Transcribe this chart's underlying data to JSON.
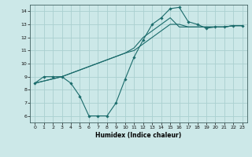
{
  "xlabel": "Humidex (Indice chaleur)",
  "background_color": "#cce8e8",
  "grid_color": "#aad0d0",
  "line_color": "#1a6b6b",
  "xlim": [
    -0.5,
    23.5
  ],
  "ylim": [
    5.5,
    14.5
  ],
  "xticks": [
    0,
    1,
    2,
    3,
    4,
    5,
    6,
    7,
    8,
    9,
    10,
    11,
    12,
    13,
    14,
    15,
    16,
    17,
    18,
    19,
    20,
    21,
    22,
    23
  ],
  "yticks": [
    6,
    7,
    8,
    9,
    10,
    11,
    12,
    13,
    14
  ],
  "line1_x": [
    0,
    1,
    2,
    3,
    4,
    5,
    6,
    7,
    8,
    9,
    10,
    11,
    12,
    13,
    14,
    15,
    16,
    17,
    18,
    19,
    20,
    21,
    22,
    23
  ],
  "line1_y": [
    8.5,
    9.0,
    9.0,
    9.0,
    8.5,
    7.5,
    6.0,
    6.0,
    6.0,
    7.0,
    8.8,
    10.5,
    11.8,
    13.0,
    13.5,
    14.2,
    14.3,
    13.2,
    13.0,
    12.7,
    12.8,
    12.8,
    12.9,
    12.9
  ],
  "line2_x": [
    0,
    3,
    10,
    11,
    12,
    13,
    14,
    15,
    16,
    17,
    18,
    19,
    20,
    21,
    22,
    23
  ],
  "line2_y": [
    8.5,
    9.0,
    10.8,
    11.0,
    11.5,
    12.0,
    12.5,
    13.0,
    13.0,
    12.8,
    12.8,
    12.8,
    12.8,
    12.8,
    12.9,
    12.9
  ],
  "line3_x": [
    0,
    3,
    10,
    11,
    12,
    13,
    14,
    15,
    16,
    17,
    18,
    19,
    20,
    21,
    22,
    23
  ],
  "line3_y": [
    8.5,
    9.0,
    10.8,
    11.2,
    12.0,
    12.5,
    13.0,
    13.5,
    12.8,
    12.8,
    12.8,
    12.8,
    12.8,
    12.8,
    12.9,
    12.9
  ]
}
